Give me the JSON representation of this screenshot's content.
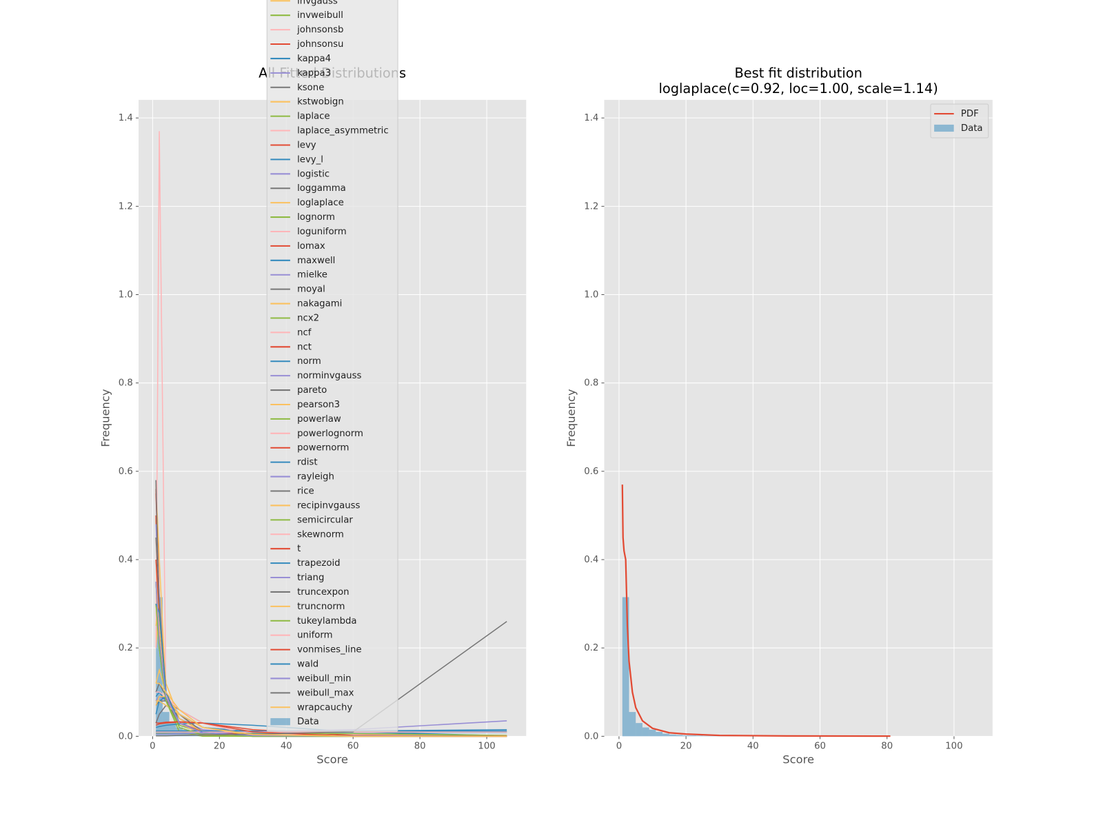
{
  "chart_data": [
    {
      "type": "line",
      "title": "All Fitted Distributions",
      "xlabel": "Score",
      "ylabel": "Frequency",
      "xlim": [
        -4.2,
        111.8
      ],
      "ylim": [
        0,
        1.441
      ],
      "xticks": [
        0,
        20,
        40,
        60,
        80,
        100
      ],
      "yticks": [
        {
          "value": 0,
          "label": "0.0"
        },
        0.2,
        0.4,
        0.6,
        0.8,
        {
          "value": 1,
          "label": "1.0"
        },
        1.2,
        1.4
      ],
      "grid": true,
      "legend": "upper center",
      "x": [
        1,
        2,
        4,
        8,
        15,
        30,
        60,
        106
      ],
      "series": [
        {
          "name": "invgauss",
          "color": "#FBC15E",
          "values": [
            0.2,
            0.3,
            0.12,
            0.04,
            0.012,
            0.003,
            0.001,
            0.0004
          ]
        },
        {
          "name": "invweibull",
          "color": "#8EBA42",
          "values": [
            0.5,
            0.28,
            0.08,
            0.025,
            0.008,
            0.002,
            0.0006,
            0.0002
          ]
        },
        {
          "name": "johnsonsb",
          "color": "#FFB5B8",
          "values": [
            0.3,
            0.25,
            0.1,
            0.04,
            0.015,
            0.006,
            0.003,
            0.002
          ]
        },
        {
          "name": "johnsonsu",
          "color": "#E24A33",
          "values": [
            0.55,
            0.3,
            0.09,
            0.03,
            0.01,
            0.003,
            0.001,
            0.0005
          ]
        },
        {
          "name": "kappa4",
          "color": "#348ABD",
          "values": [
            0.1,
            0.12,
            0.09,
            0.05,
            0.02,
            0.005,
            0.001,
            0
          ]
        },
        {
          "name": "kappa3",
          "color": "#988ED5",
          "values": [
            0.35,
            0.2,
            0.09,
            0.04,
            0.015,
            0.005,
            0.001,
            0.0005
          ]
        },
        {
          "name": "ksone",
          "color": "#777777",
          "values": [
            0.08,
            0.09,
            0.085,
            0.05,
            0.01,
            0,
            0,
            0
          ]
        },
        {
          "name": "kstwobign",
          "color": "#FBC15E",
          "values": [
            0.12,
            0.15,
            0.1,
            0.03,
            0.002,
            0,
            0,
            0
          ]
        },
        {
          "name": "laplace",
          "color": "#8EBA42",
          "values": [
            0.3,
            0.2,
            0.08,
            0.01,
            0,
            0,
            0,
            0
          ]
        },
        {
          "name": "laplace_asymmetric",
          "color": "#FFB5B8",
          "values": [
            0.45,
            0.25,
            0.09,
            0.03,
            0.008,
            0.001,
            0,
            0
          ]
        },
        {
          "name": "levy",
          "color": "#E24A33",
          "values": [
            0.5,
            0.25,
            0.08,
            0.03,
            0.012,
            0.005,
            0.002,
            0.001
          ]
        },
        {
          "name": "levy_l",
          "color": "#348ABD",
          "values": [
            0.09,
            0.1,
            0.08,
            0.05,
            0.02,
            0.01,
            0.012,
            0.015
          ]
        },
        {
          "name": "logistic",
          "color": "#988ED5",
          "values": [
            0.08,
            0.09,
            0.08,
            0.05,
            0.02,
            0.002,
            0,
            0
          ]
        },
        {
          "name": "loggamma",
          "color": "#777777",
          "values": [
            0.07,
            0.08,
            0.08,
            0.06,
            0.03,
            0.003,
            0,
            0
          ]
        },
        {
          "name": "loglaplace",
          "color": "#FBC15E",
          "values": [
            0.57,
            0.4,
            0.1,
            0.03,
            0.008,
            0.002,
            0.0005,
            0.0002
          ]
        },
        {
          "name": "lognorm",
          "color": "#8EBA42",
          "values": [
            0.5,
            0.3,
            0.1,
            0.03,
            0.008,
            0.002,
            0.0005,
            0.0002
          ]
        },
        {
          "name": "loguniform",
          "color": "#FFB5B8",
          "values": [
            0.2,
            1.37,
            0.08,
            0.03,
            0.012,
            0.005,
            0.003,
            0.002
          ]
        },
        {
          "name": "lomax",
          "color": "#E24A33",
          "values": [
            0.56,
            0.3,
            0.09,
            0.03,
            0.01,
            0.003,
            0.001,
            0.0004
          ]
        },
        {
          "name": "maxwell",
          "color": "#348ABD",
          "values": [
            0.05,
            0.08,
            0.09,
            0.05,
            0.005,
            0,
            0,
            0
          ]
        },
        {
          "name": "mielke",
          "color": "#988ED5",
          "values": [
            0.4,
            0.32,
            0.1,
            0.03,
            0.009,
            0.002,
            0.0005,
            0.0002
          ]
        },
        {
          "name": "moyal",
          "color": "#777777",
          "values": [
            0.1,
            0.12,
            0.09,
            0.04,
            0.01,
            0.001,
            0,
            0
          ]
        },
        {
          "name": "nakagami",
          "color": "#FBC15E",
          "values": [
            0.07,
            0.09,
            0.09,
            0.05,
            0.006,
            0,
            0,
            0
          ]
        },
        {
          "name": "ncx2",
          "color": "#8EBA42",
          "values": [
            0.35,
            0.2,
            0.08,
            0.03,
            0.008,
            0.001,
            0,
            0
          ]
        },
        {
          "name": "ncf",
          "color": "#FFB5B8",
          "values": [
            0.45,
            0.28,
            0.1,
            0.03,
            0.01,
            0.003,
            0.001,
            0.0005
          ]
        },
        {
          "name": "nct",
          "color": "#E24A33",
          "values": [
            0.5,
            0.3,
            0.09,
            0.03,
            0.01,
            0.003,
            0.001,
            0.0005
          ]
        },
        {
          "name": "norm",
          "color": "#348ABD",
          "values": [
            0.02,
            0.022,
            0.025,
            0.028,
            0.03,
            0.025,
            0.01,
            0.001
          ]
        },
        {
          "name": "norminvgauss",
          "color": "#988ED5",
          "values": [
            0.48,
            0.3,
            0.09,
            0.03,
            0.01,
            0.003,
            0.001,
            0.0005
          ]
        },
        {
          "name": "pareto",
          "color": "#777777",
          "values": [
            0.58,
            0.25,
            0.08,
            0.03,
            0.01,
            0.003,
            0.001,
            0.0004
          ]
        },
        {
          "name": "pearson3",
          "color": "#FBC15E",
          "values": [
            0.4,
            0.25,
            0.09,
            0.03,
            0.008,
            0.001,
            0,
            0
          ]
        },
        {
          "name": "powerlaw",
          "color": "#8EBA42",
          "values": [
            0.011,
            0.011,
            0.011,
            0.011,
            0.011,
            0.011,
            0.011,
            0.011
          ]
        },
        {
          "name": "powerlognorm",
          "color": "#FFB5B8",
          "values": [
            0.45,
            0.3,
            0.1,
            0.03,
            0.008,
            0.002,
            0.0005,
            0.0002
          ]
        },
        {
          "name": "powernorm",
          "color": "#E24A33",
          "values": [
            0.025,
            0.028,
            0.03,
            0.032,
            0.03,
            0.015,
            0.002,
            0
          ]
        },
        {
          "name": "rdist",
          "color": "#348ABD",
          "values": [
            0.009,
            0.009,
            0.009,
            0.009,
            0.009,
            0.009,
            0.009,
            0.009
          ]
        },
        {
          "name": "rayleigh",
          "color": "#988ED5",
          "values": [
            0.03,
            0.05,
            0.07,
            0.05,
            0.01,
            0,
            0,
            0
          ]
        },
        {
          "name": "rice",
          "color": "#777777",
          "values": [
            0.03,
            0.05,
            0.07,
            0.05,
            0.01,
            0,
            0,
            0
          ]
        },
        {
          "name": "recipinvgauss",
          "color": "#FBC15E",
          "values": [
            0.25,
            0.3,
            0.12,
            0.04,
            0.01,
            0.002,
            0.0005,
            0.0002
          ]
        },
        {
          "name": "semicircular",
          "color": "#8EBA42",
          "values": [
            0.006,
            0.006,
            0.006,
            0.006,
            0.006,
            0.006,
            0.006,
            0.002
          ]
        },
        {
          "name": "skewnorm",
          "color": "#FFB5B8",
          "values": [
            0.1,
            0.1,
            0.09,
            0.06,
            0.03,
            0.003,
            0,
            0
          ]
        },
        {
          "name": "t",
          "color": "#E24A33",
          "values": [
            0.4,
            0.28,
            0.1,
            0.03,
            0.01,
            0.003,
            0.001,
            0.0005
          ]
        },
        {
          "name": "trapezoid",
          "color": "#348ABD",
          "values": [
            0.012,
            0.012,
            0.012,
            0.012,
            0.012,
            0.012,
            0.012,
            0.012
          ]
        },
        {
          "name": "triang",
          "color": "#988ED5",
          "values": [
            0.005,
            0.005,
            0.005,
            0.006,
            0.007,
            0.01,
            0.015,
            0.035
          ]
        },
        {
          "name": "truncexpon",
          "color": "#777777",
          "values": [
            0.45,
            0.3,
            0.1,
            0.03,
            0.008,
            0.002,
            0.0005,
            0.0002
          ]
        },
        {
          "name": "truncnorm",
          "color": "#FBC15E",
          "values": [
            0.08,
            0.08,
            0.07,
            0.05,
            0.02,
            0.002,
            0,
            0
          ]
        },
        {
          "name": "tukeylambda",
          "color": "#8EBA42",
          "values": [
            0.3,
            0.2,
            0.08,
            0.02,
            0.003,
            0,
            0,
            0
          ]
        },
        {
          "name": "uniform",
          "color": "#FFB5B8",
          "values": [
            0.0095,
            0.0095,
            0.0095,
            0.0095,
            0.0095,
            0.0095,
            0.0095,
            0.0095
          ]
        },
        {
          "name": "vonmises_line",
          "color": "#E24A33",
          "values": [
            0.03,
            0.03,
            0.032,
            0.033,
            0.03,
            0.01,
            0,
            0
          ]
        },
        {
          "name": "wald",
          "color": "#348ABD",
          "values": [
            0.3,
            0.28,
            0.1,
            0.03,
            0.008,
            0.002,
            0.0005,
            0.0002
          ]
        },
        {
          "name": "weibull_min",
          "color": "#988ED5",
          "values": [
            0.35,
            0.22,
            0.09,
            0.03,
            0.008,
            0.002,
            0.0005,
            0.0002
          ]
        },
        {
          "name": "weibull_max",
          "color": "#777777",
          "values": [
            0.001,
            0.001,
            0.001,
            0.002,
            0.003,
            0.005,
            0.01,
            0.26
          ]
        },
        {
          "name": "wrapcauchy",
          "color": "#FBC15E",
          "values": [
            0.12,
            0.12,
            0.1,
            0.06,
            0.02,
            0.004,
            0,
            0
          ]
        }
      ],
      "histogram": {
        "name": "Data",
        "color": "#348ABD",
        "alpha": 0.5,
        "bins": [
          1,
          3,
          5,
          7,
          9,
          11,
          13,
          15,
          17,
          19,
          21,
          23,
          25,
          27,
          29,
          31,
          33,
          35,
          37,
          39,
          41,
          43,
          45,
          47,
          49,
          51,
          53,
          55,
          57,
          59,
          61,
          63,
          65,
          67,
          69,
          71,
          73,
          75,
          77,
          79,
          81
        ],
        "counts": [
          0.315,
          0.055,
          0.03,
          0.02,
          0.015,
          0.01,
          0.006,
          0.004,
          0.003,
          0.002,
          0.002,
          0.0015,
          0.001,
          0.001,
          0.001,
          0.0008,
          0.0006,
          0.0005,
          0.0005,
          0.0004,
          0.0003,
          0.0003,
          0.0003,
          0.0002,
          0.0002,
          0.0002,
          0.0002,
          0.0002,
          0.0002,
          0.0001,
          0.0001,
          0.0001,
          0.0001,
          0.0001,
          0.0001,
          0.0001,
          0.0001,
          0.0001,
          0.0001,
          0.0001
        ]
      }
    },
    {
      "type": "line",
      "title": "Best fit distribution",
      "subtitle": "loglaplace(c=0.92, loc=1.00, scale=1.14)",
      "xlabel": "Score",
      "ylabel": "Frequency",
      "xlim": [
        -4.4,
        111.5
      ],
      "ylim": [
        0,
        1.441
      ],
      "xticks": [
        0,
        20,
        40,
        60,
        80,
        100
      ],
      "yticks": [
        {
          "value": 0,
          "label": "0.0"
        },
        0.2,
        0.4,
        0.6,
        0.8,
        {
          "value": 1,
          "label": "1.0"
        },
        1.2,
        1.4
      ],
      "grid": true,
      "legend": "upper right",
      "x": [
        1,
        1.2,
        1.5,
        2,
        2.5,
        3,
        4,
        5,
        7,
        10,
        15,
        20,
        30,
        50,
        81
      ],
      "series": [
        {
          "name": "PDF",
          "color": "#E24A33",
          "values": [
            0.57,
            0.45,
            0.42,
            0.4,
            0.25,
            0.17,
            0.1,
            0.065,
            0.035,
            0.018,
            0.008,
            0.005,
            0.002,
            0.0007,
            0.0003
          ]
        }
      ],
      "histogram": {
        "name": "Data",
        "color": "#348ABD",
        "alpha": 0.5,
        "bins": [
          1,
          3,
          5,
          7,
          9,
          11,
          13,
          15,
          17,
          19,
          21,
          23,
          25,
          27,
          29,
          31,
          33,
          35,
          37,
          39,
          41,
          43,
          45,
          47,
          49,
          51,
          53,
          55,
          57,
          59,
          61,
          63,
          65,
          67,
          69,
          71,
          73,
          75,
          77,
          79,
          81
        ],
        "counts": [
          0.315,
          0.055,
          0.03,
          0.02,
          0.015,
          0.01,
          0.006,
          0.004,
          0.003,
          0.002,
          0.002,
          0.0015,
          0.001,
          0.001,
          0.001,
          0.0008,
          0.0006,
          0.0005,
          0.0005,
          0.0004,
          0.0003,
          0.0003,
          0.0003,
          0.0002,
          0.0002,
          0.0002,
          0.0002,
          0.0002,
          0.0002,
          0.0001,
          0.0001,
          0.0001,
          0.0001,
          0.0001,
          0.0001,
          0.0001,
          0.0001,
          0.0001,
          0.0001,
          0.0001
        ]
      }
    }
  ]
}
